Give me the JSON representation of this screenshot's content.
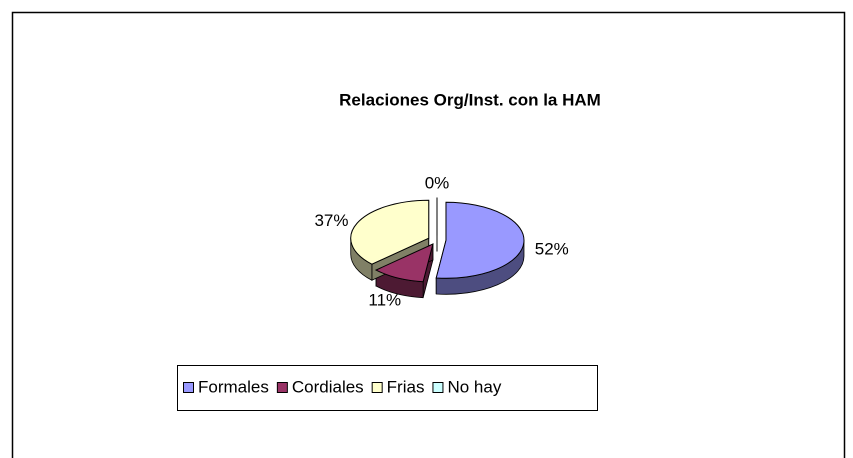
{
  "chart_data": {
    "type": "pie3d",
    "title": "Relaciones Org/Inst. con la HAM",
    "categories": [
      "Formales",
      "Cordiales",
      "Frias",
      "No hay"
    ],
    "values": [
      52,
      11,
      37,
      0
    ],
    "value_labels": [
      "52%",
      "11%",
      "37%",
      "0%"
    ],
    "colors": [
      "#9999ff",
      "#993366",
      "#ffffcc",
      "#ccffff"
    ],
    "legend": "bottom"
  }
}
